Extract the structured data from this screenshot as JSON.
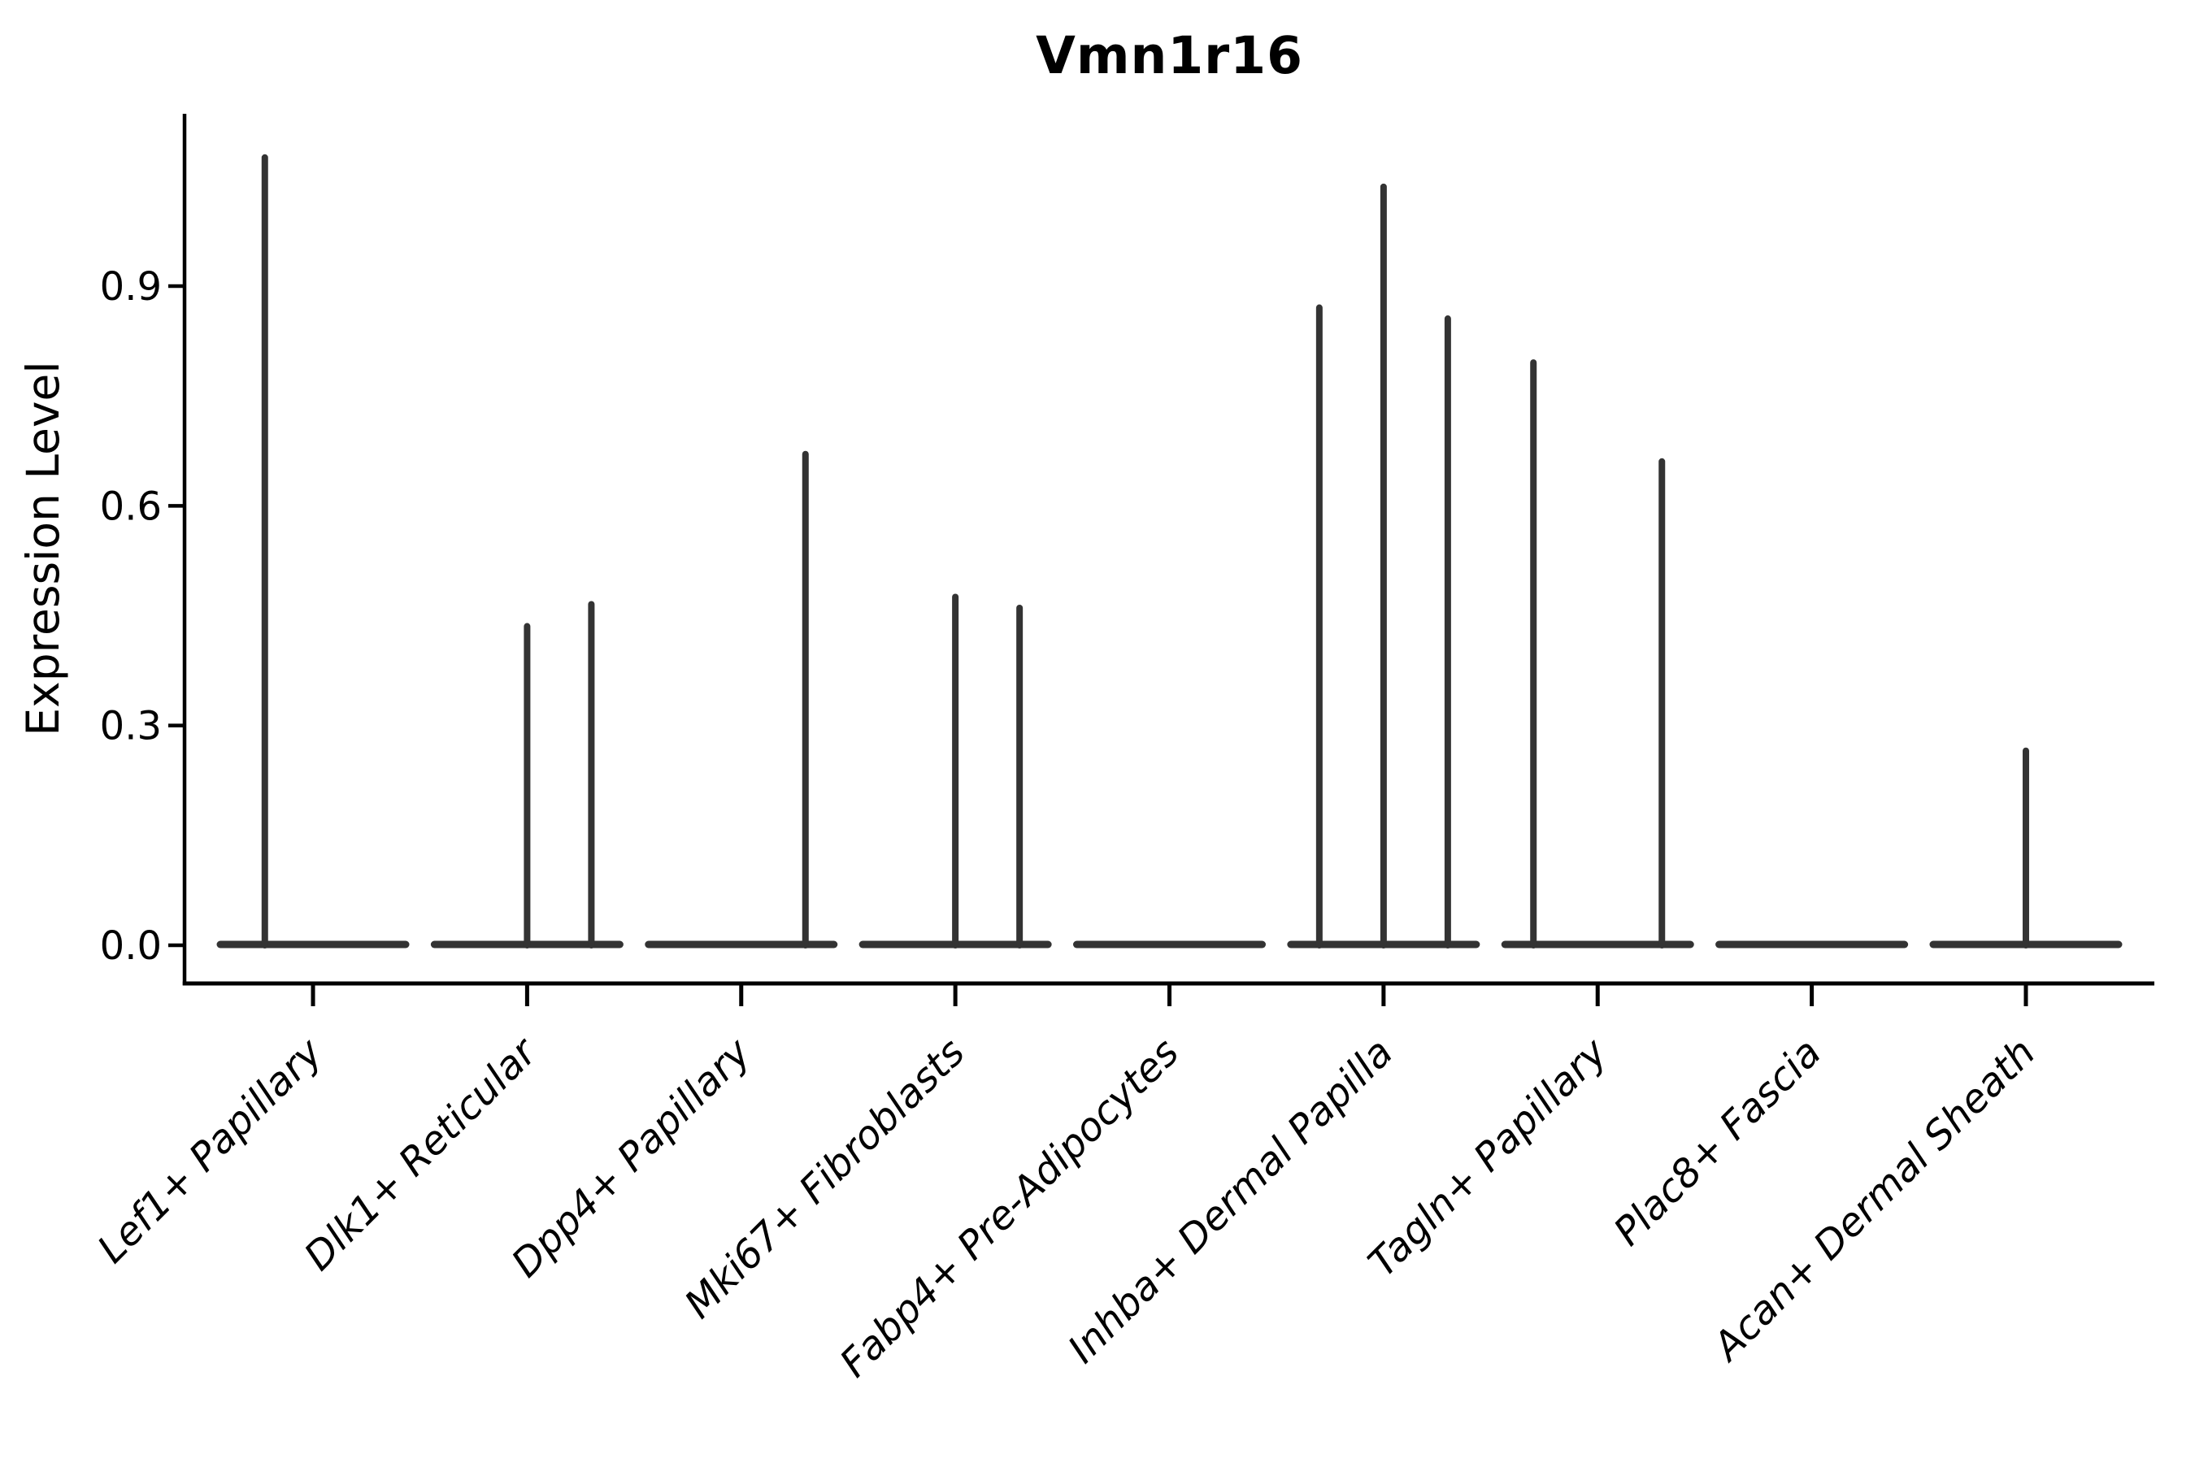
{
  "figure": {
    "background": "#ffffff"
  },
  "chart_data": {
    "type": "violin",
    "title": "Vmn1r16",
    "xlabel": "",
    "ylabel": "Expression Level",
    "ylim": [
      0,
      1.135
    ],
    "yticks": [
      {
        "value": 0.0,
        "label": "0.0"
      },
      {
        "value": 0.3,
        "label": "0.3"
      },
      {
        "value": 0.6,
        "label": "0.6"
      },
      {
        "value": 0.9,
        "label": "0.9"
      }
    ],
    "grid": false,
    "legend": "none",
    "x_axis_style": "italic, rotated 45deg, anchored at tick",
    "categories": [
      "Lef1+ Papillary",
      "Dlk1+ Reticular",
      "Dpp4+ Papillary",
      "Mki67+ Fibroblasts",
      "Fabp4+ Pre-Adipocytes",
      "Inhba+ Dermal Papilla",
      "Tagln+ Papillary",
      "Plac8+ Fascia",
      "Acan+ Dermal Sheath"
    ],
    "violin_total_width": 0.9,
    "description": "Near-all cells at expression 0 (flat baseline blob per category); thin density spikes rise to the max expressing cells. offset = horizontal position of spike within category, in category-axis units from center; peak = top expression value of spike.",
    "violins": [
      {
        "category": "Lef1+ Papillary",
        "baseline_at_zero": true,
        "spikes": [
          {
            "offset": -0.225,
            "peak": 1.08
          }
        ]
      },
      {
        "category": "Dlk1+ Reticular",
        "baseline_at_zero": true,
        "spikes": [
          {
            "offset": 0.0,
            "peak": 0.44
          },
          {
            "offset": 0.3,
            "peak": 0.47
          }
        ]
      },
      {
        "category": "Dpp4+ Papillary",
        "baseline_at_zero": true,
        "spikes": [
          {
            "offset": 0.3,
            "peak": 0.675
          }
        ]
      },
      {
        "category": "Mki67+ Fibroblasts",
        "baseline_at_zero": true,
        "spikes": [
          {
            "offset": 0.0,
            "peak": 0.48
          },
          {
            "offset": 0.3,
            "peak": 0.465
          }
        ]
      },
      {
        "category": "Fabp4+ Pre-Adipocytes",
        "baseline_at_zero": true,
        "spikes": []
      },
      {
        "category": "Inhba+ Dermal Papilla",
        "baseline_at_zero": true,
        "spikes": [
          {
            "offset": -0.3,
            "peak": 0.875
          },
          {
            "offset": 0.0,
            "peak": 1.04
          },
          {
            "offset": 0.3,
            "peak": 0.86
          }
        ]
      },
      {
        "category": "Tagln+ Papillary",
        "baseline_at_zero": true,
        "spikes": [
          {
            "offset": -0.3,
            "peak": 0.8
          },
          {
            "offset": 0.3,
            "peak": 0.665
          }
        ]
      },
      {
        "category": "Plac8+ Fascia",
        "baseline_at_zero": true,
        "spikes": []
      },
      {
        "category": "Acan+ Dermal Sheath",
        "baseline_at_zero": true,
        "spikes": [
          {
            "offset": 0.0,
            "peak": 0.27
          }
        ]
      }
    ],
    "colors": {
      "violin": "#333333",
      "axis": "#000000",
      "text": "#000000",
      "background": "#ffffff"
    }
  }
}
